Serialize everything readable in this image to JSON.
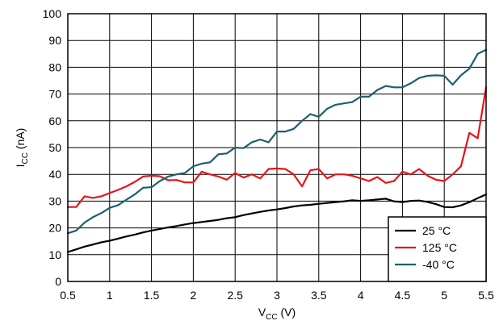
{
  "chart_data": {
    "type": "line",
    "title": "",
    "xlabel": "V",
    "xlabel_sub": "CC",
    "xlabel_unit": " (V)",
    "ylabel": "I",
    "ylabel_sub": "CC",
    "ylabel_unit": " (nA)",
    "xlim": [
      0.5,
      5.5
    ],
    "ylim": [
      0,
      100
    ],
    "xticks": [
      "0.5",
      "1",
      "1.5",
      "2",
      "2.5",
      "3",
      "3.5",
      "4",
      "4.5",
      "5",
      "5.5"
    ],
    "yticks": [
      "0",
      "10",
      "20",
      "30",
      "40",
      "50",
      "60",
      "70",
      "80",
      "90",
      "100"
    ],
    "grid": true,
    "legend_position": "bottom-right",
    "series": [
      {
        "name": "25 °C",
        "color": "#000000",
        "x": [
          0.5,
          0.6,
          0.7,
          0.8,
          0.9,
          1.0,
          1.1,
          1.2,
          1.3,
          1.4,
          1.5,
          1.6,
          1.7,
          1.8,
          1.9,
          2.0,
          2.1,
          2.2,
          2.3,
          2.4,
          2.5,
          2.6,
          2.7,
          2.8,
          2.9,
          3.0,
          3.1,
          3.2,
          3.3,
          3.4,
          3.5,
          3.6,
          3.7,
          3.8,
          3.9,
          4.0,
          4.1,
          4.2,
          4.3,
          4.4,
          4.5,
          4.6,
          4.7,
          4.8,
          4.9,
          5.0,
          5.1,
          5.2,
          5.3,
          5.4,
          5.5
        ],
        "y": [
          11.0,
          12.0,
          13.0,
          13.8,
          14.6,
          15.2,
          16.0,
          16.8,
          17.5,
          18.3,
          19.0,
          19.6,
          20.2,
          20.7,
          21.3,
          21.8,
          22.2,
          22.6,
          23.0,
          23.6,
          24.0,
          24.8,
          25.4,
          26.0,
          26.5,
          26.9,
          27.4,
          28.0,
          28.4,
          28.6,
          29.0,
          29.3,
          29.6,
          29.9,
          30.3,
          30.1,
          30.3,
          30.6,
          30.9,
          29.9,
          29.6,
          30.1,
          30.2,
          29.7,
          28.9,
          27.8,
          27.7,
          28.4,
          29.6,
          31.1,
          32.5
        ]
      },
      {
        "name": "125 °C",
        "color": "#e8141b",
        "x": [
          0.5,
          0.6,
          0.7,
          0.8,
          0.9,
          1.0,
          1.1,
          1.2,
          1.3,
          1.4,
          1.5,
          1.6,
          1.7,
          1.8,
          1.9,
          2.0,
          2.1,
          2.2,
          2.3,
          2.4,
          2.5,
          2.6,
          2.7,
          2.8,
          2.9,
          3.0,
          3.1,
          3.2,
          3.3,
          3.4,
          3.5,
          3.6,
          3.7,
          3.8,
          3.9,
          4.0,
          4.1,
          4.2,
          4.3,
          4.4,
          4.5,
          4.6,
          4.7,
          4.8,
          4.9,
          5.0,
          5.1,
          5.2,
          5.3,
          5.4,
          5.5
        ],
        "y": [
          27.8,
          27.8,
          31.8,
          31.2,
          31.8,
          33.0,
          34.2,
          35.5,
          37.2,
          39.2,
          39.5,
          39.3,
          37.8,
          37.9,
          37.0,
          37.0,
          41.0,
          40.0,
          39.2,
          38.0,
          40.5,
          38.8,
          40.0,
          38.5,
          42.0,
          42.2,
          42.0,
          40.0,
          35.5,
          41.5,
          42.0,
          38.5,
          40.0,
          40.0,
          39.5,
          38.5,
          37.5,
          39.0,
          36.8,
          37.5,
          41.0,
          40.0,
          42.0,
          39.5,
          38.0,
          37.5,
          40.0,
          43.0,
          55.5,
          53.5,
          72.5
        ]
      },
      {
        "name": "-40 °C",
        "color": "#1c5f70",
        "x": [
          0.5,
          0.6,
          0.7,
          0.8,
          0.9,
          1.0,
          1.1,
          1.2,
          1.3,
          1.4,
          1.5,
          1.6,
          1.7,
          1.8,
          1.9,
          2.0,
          2.1,
          2.2,
          2.3,
          2.4,
          2.5,
          2.6,
          2.7,
          2.8,
          2.9,
          3.0,
          3.1,
          3.2,
          3.3,
          3.4,
          3.5,
          3.6,
          3.7,
          3.8,
          3.9,
          4.0,
          4.1,
          4.2,
          4.3,
          4.4,
          4.5,
          4.6,
          4.7,
          4.8,
          4.9,
          5.0,
          5.1,
          5.2,
          5.3,
          5.4,
          5.5
        ],
        "y": [
          18.0,
          19.0,
          22.0,
          24.0,
          25.5,
          27.5,
          28.5,
          30.5,
          32.5,
          35.0,
          35.2,
          37.5,
          39.2,
          40.0,
          40.5,
          43.0,
          44.0,
          44.5,
          47.5,
          47.8,
          50.0,
          49.8,
          52.0,
          53.0,
          52.0,
          56.0,
          56.0,
          57.0,
          60.0,
          62.5,
          61.5,
          64.5,
          66.0,
          66.5,
          67.0,
          69.0,
          69.0,
          71.5,
          73.0,
          72.5,
          72.5,
          74.0,
          76.0,
          76.8,
          77.0,
          76.8,
          73.5,
          77.0,
          79.5,
          85.0,
          86.5
        ]
      }
    ]
  }
}
